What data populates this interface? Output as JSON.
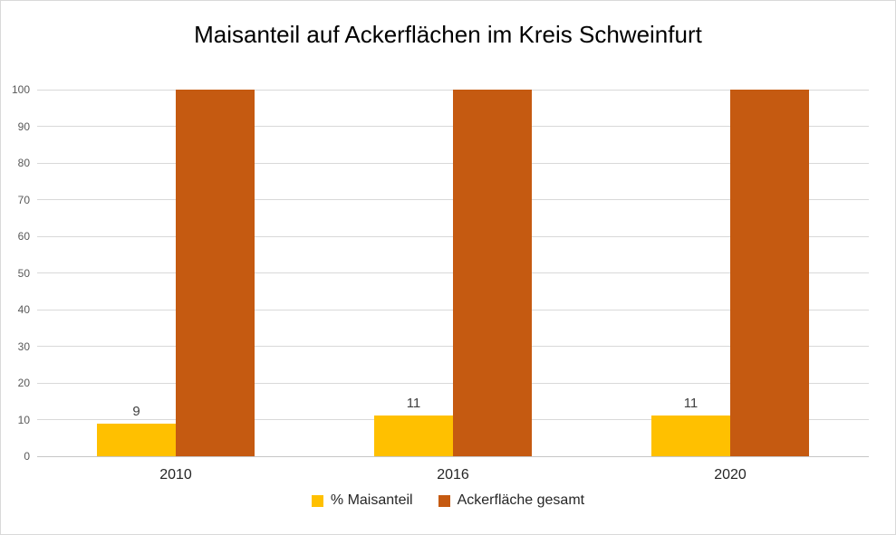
{
  "chart_data": {
    "type": "bar",
    "title": "Maisanteil auf Ackerflächen im Kreis Schweinfurt",
    "categories": [
      "2010",
      "2016",
      "2020"
    ],
    "series": [
      {
        "name": "% Maisanteil",
        "color": "#FFC000",
        "values": [
          9,
          11,
          11
        ],
        "data_labels": true
      },
      {
        "name": "Ackerfläche gesamt",
        "color": "#C55A11",
        "values": [
          100,
          100,
          100
        ],
        "data_labels": false
      }
    ],
    "xlabel": "",
    "ylabel": "",
    "ylim": [
      0,
      100
    ],
    "ytick_step": 10,
    "grid": true,
    "legend_position": "bottom"
  },
  "colors": {
    "background": "#FFFFFF",
    "canvas_border": "#D9D9D9",
    "gridline": "#D9D9D9",
    "axis_line": "#C6C6C6",
    "y_tick_label": "#595959",
    "category_label": "#262626",
    "data_label": "#404040",
    "title": "#000000"
  }
}
